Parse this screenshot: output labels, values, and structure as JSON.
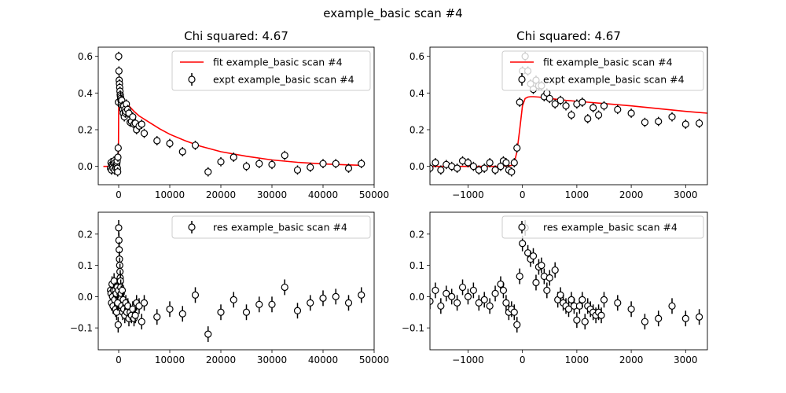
{
  "figure": {
    "suptitle": "example_basic scan #4"
  },
  "chart_data": [
    {
      "type": "line",
      "title": "Chi squared:  4.67",
      "xlabel": "",
      "ylabel": "",
      "xlim": [
        -4000,
        50000
      ],
      "ylim": [
        -0.1,
        0.65
      ],
      "xticks": [
        0,
        10000,
        20000,
        30000,
        40000,
        50000
      ],
      "yticks": [
        0.0,
        0.2,
        0.4,
        0.6
      ],
      "legend": "top-right",
      "series": [
        {
          "name": "fit example_basic scan #4",
          "kind": "line",
          "color": "#ff0000",
          "x": [
            -3000,
            -1000,
            -200,
            -50,
            0,
            100,
            300,
            600,
            1000,
            2000,
            3000,
            4000,
            6000,
            8000,
            10000,
            13000,
            16000,
            20000,
            25000,
            30000,
            35000,
            40000,
            45000,
            47500
          ],
          "y": [
            0.0,
            0.0,
            0.0,
            0.1,
            0.34,
            0.37,
            0.37,
            0.365,
            0.355,
            0.33,
            0.3,
            0.275,
            0.24,
            0.205,
            0.175,
            0.14,
            0.11,
            0.08,
            0.055,
            0.035,
            0.022,
            0.013,
            0.008,
            0.006
          ]
        },
        {
          "name": "expt example_basic scan #4",
          "kind": "errorbar",
          "color": "#000000",
          "x": [
            -1600,
            -1500,
            -1400,
            -1300,
            -1200,
            -1100,
            -1000,
            -900,
            -800,
            -700,
            -600,
            -500,
            -400,
            -350,
            -300,
            -250,
            -200,
            -150,
            -100,
            -50,
            0,
            50,
            100,
            150,
            200,
            250,
            300,
            350,
            400,
            450,
            500,
            600,
            700,
            800,
            900,
            1000,
            1100,
            1200,
            1300,
            1400,
            1500,
            1750,
            2000,
            2250,
            2500,
            2750,
            3000,
            3250,
            3500,
            4000,
            4500,
            5000,
            7500,
            10000,
            12500,
            15000,
            17500,
            20000,
            22500,
            25000,
            27500,
            30000,
            32500,
            35000,
            37500,
            40000,
            42500,
            45000,
            47500
          ],
          "y": [
            -0.01,
            0.02,
            -0.02,
            0.01,
            0.0,
            -0.01,
            0.02,
            0.03,
            -0.02,
            0.02,
            0.0,
            -0.01,
            0.01,
            0.02,
            0.03,
            -0.01,
            -0.03,
            0.05,
            0.1,
            0.35,
            0.6,
            0.52,
            0.47,
            0.45,
            0.43,
            0.41,
            0.39,
            0.38,
            0.37,
            0.36,
            0.34,
            0.36,
            0.33,
            0.31,
            0.29,
            0.33,
            0.27,
            0.31,
            0.29,
            0.3,
            0.34,
            0.31,
            0.29,
            0.24,
            0.245,
            0.27,
            0.23,
            0.235,
            0.2,
            0.22,
            0.23,
            0.18,
            0.14,
            0.125,
            0.08,
            0.115,
            -0.03,
            0.025,
            0.05,
            0.0,
            0.015,
            0.01,
            0.06,
            -0.02,
            -0.005,
            0.015,
            0.015,
            -0.01,
            0.015
          ],
          "yerr": 0.025
        }
      ]
    },
    {
      "type": "line",
      "title": "Chi squared:  4.67",
      "xlabel": "",
      "ylabel": "",
      "xlim": [
        -1700,
        3400
      ],
      "ylim": [
        -0.1,
        0.65
      ],
      "xticks": [
        -1000,
        0,
        1000,
        2000,
        3000
      ],
      "yticks": [
        0.0,
        0.2,
        0.4,
        0.6
      ],
      "legend": "top-right",
      "series": [
        {
          "name": "fit example_basic scan #4",
          "kind": "line",
          "color": "#ff0000",
          "x": [
            -1700,
            -400,
            -200,
            -150,
            -100,
            -50,
            0,
            50,
            100,
            150,
            200,
            300,
            500,
            800,
            1200,
            1600,
            2000,
            2500,
            3000,
            3400
          ],
          "y": [
            0.0,
            0.0,
            0.005,
            0.02,
            0.08,
            0.2,
            0.33,
            0.37,
            0.378,
            0.38,
            0.38,
            0.378,
            0.37,
            0.36,
            0.35,
            0.34,
            0.33,
            0.315,
            0.3,
            0.29
          ]
        },
        {
          "name": "expt example_basic scan #4",
          "kind": "errorbar",
          "color": "#000000",
          "x": [
            -1700,
            -1600,
            -1500,
            -1400,
            -1300,
            -1200,
            -1100,
            -1000,
            -900,
            -800,
            -700,
            -600,
            -500,
            -400,
            -350,
            -300,
            -250,
            -200,
            -150,
            -100,
            -50,
            0,
            50,
            100,
            150,
            200,
            250,
            300,
            350,
            400,
            450,
            500,
            600,
            700,
            800,
            900,
            1000,
            1100,
            1200,
            1300,
            1400,
            1500,
            1750,
            2000,
            2250,
            2500,
            2750,
            3000,
            3250
          ],
          "y": [
            -0.01,
            0.02,
            -0.02,
            0.01,
            0.0,
            -0.01,
            0.03,
            0.02,
            0.0,
            -0.02,
            -0.01,
            0.02,
            -0.02,
            0.0,
            0.03,
            0.02,
            -0.02,
            -0.03,
            0.02,
            0.1,
            0.35,
            0.52,
            0.6,
            0.52,
            0.45,
            0.42,
            0.47,
            0.44,
            0.44,
            0.38,
            0.4,
            0.37,
            0.34,
            0.36,
            0.33,
            0.28,
            0.34,
            0.35,
            0.26,
            0.32,
            0.28,
            0.33,
            0.31,
            0.29,
            0.24,
            0.245,
            0.27,
            0.23,
            0.235
          ],
          "yerr": 0.025
        }
      ]
    },
    {
      "type": "scatter",
      "title": "",
      "xlabel": "",
      "ylabel": "",
      "xlim": [
        -4000,
        50000
      ],
      "ylim": [
        -0.17,
        0.27
      ],
      "xticks": [
        0,
        10000,
        20000,
        30000,
        40000,
        50000
      ],
      "yticks": [
        -0.1,
        0.0,
        0.1,
        0.2
      ],
      "legend": "top-right",
      "series": [
        {
          "name": "res example_basic scan #4",
          "kind": "errorbar",
          "color": "#000000",
          "x": [
            -1600,
            -1500,
            -1400,
            -1300,
            -1200,
            -1100,
            -1000,
            -900,
            -800,
            -700,
            -600,
            -500,
            -400,
            -300,
            -200,
            -100,
            -50,
            0,
            50,
            100,
            150,
            200,
            250,
            300,
            350,
            400,
            500,
            600,
            700,
            800,
            900,
            1000,
            1200,
            1400,
            1600,
            1800,
            2000,
            2250,
            2500,
            2750,
            3000,
            3250,
            3500,
            4000,
            4500,
            5000,
            7500,
            10000,
            12500,
            15000,
            17500,
            20000,
            22500,
            25000,
            27500,
            30000,
            32500,
            35000,
            37500,
            40000,
            42500,
            45000,
            47500
          ],
          "y": [
            0.02,
            0.01,
            -0.02,
            0.04,
            0.0,
            -0.03,
            0.02,
            0.05,
            -0.01,
            0.02,
            -0.04,
            0.01,
            -0.05,
            0.03,
            -0.02,
            -0.09,
            0.02,
            0.22,
            0.18,
            0.15,
            0.12,
            0.1,
            0.08,
            0.06,
            0.05,
            0.03,
            0.01,
            -0.03,
            0.02,
            -0.05,
            -0.01,
            -0.04,
            -0.06,
            -0.02,
            -0.05,
            -0.03,
            -0.07,
            -0.05,
            -0.06,
            -0.04,
            -0.07,
            -0.06,
            -0.02,
            -0.03,
            -0.08,
            -0.02,
            -0.065,
            -0.04,
            -0.055,
            0.005,
            -0.12,
            -0.05,
            -0.01,
            -0.05,
            -0.025,
            -0.025,
            0.03,
            -0.045,
            -0.02,
            -0.005,
            0.0,
            -0.02,
            0.005
          ],
          "yerr": 0.025
        }
      ]
    },
    {
      "type": "scatter",
      "title": "",
      "xlabel": "",
      "ylabel": "",
      "xlim": [
        -1700,
        3400
      ],
      "ylim": [
        -0.17,
        0.27
      ],
      "xticks": [
        -1000,
        0,
        1000,
        2000,
        3000
      ],
      "yticks": [
        -0.1,
        0.0,
        0.1,
        0.2
      ],
      "legend": "top-right",
      "series": [
        {
          "name": "res example_basic scan #4",
          "kind": "errorbar",
          "color": "#000000",
          "x": [
            -1700,
            -1600,
            -1500,
            -1400,
            -1300,
            -1200,
            -1100,
            -1000,
            -900,
            -800,
            -700,
            -600,
            -500,
            -400,
            -350,
            -300,
            -250,
            -200,
            -150,
            -100,
            -50,
            0,
            50,
            100,
            150,
            200,
            250,
            300,
            350,
            400,
            450,
            500,
            600,
            650,
            700,
            750,
            800,
            850,
            900,
            950,
            1000,
            1050,
            1100,
            1150,
            1200,
            1250,
            1300,
            1350,
            1400,
            1450,
            1500,
            1750,
            2000,
            2250,
            2500,
            2750,
            3000,
            3250
          ],
          "y": [
            -0.015,
            0.02,
            -0.03,
            0.01,
            0.0,
            -0.02,
            0.03,
            0.0,
            0.02,
            -0.02,
            -0.01,
            -0.03,
            0.01,
            0.04,
            0.02,
            -0.02,
            -0.05,
            -0.04,
            -0.05,
            -0.09,
            0.065,
            0.17,
            0.22,
            0.14,
            0.12,
            0.13,
            0.045,
            0.095,
            0.1,
            0.065,
            0.02,
            0.06,
            0.085,
            -0.01,
            0.005,
            -0.02,
            -0.03,
            -0.04,
            -0.01,
            -0.03,
            -0.075,
            -0.03,
            -0.01,
            -0.08,
            -0.03,
            -0.04,
            -0.05,
            -0.06,
            -0.05,
            -0.06,
            -0.01,
            -0.02,
            -0.04,
            -0.08,
            -0.07,
            -0.03,
            -0.07,
            -0.065
          ],
          "yerr": 0.025
        }
      ]
    }
  ]
}
